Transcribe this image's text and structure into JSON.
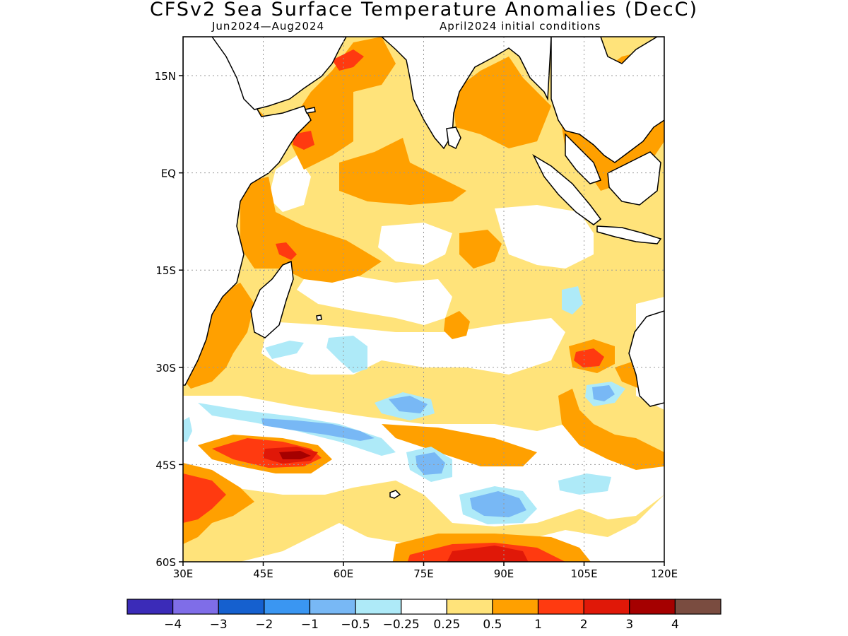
{
  "title": "CFSv2 Sea Surface Temperature Anomalies (DecC)",
  "subtitle_left": "Jun2024—Aug2024",
  "subtitle_right": "April2024 initial conditions",
  "map": {
    "lon_range": [
      30,
      120
    ],
    "lat_range": [
      -60,
      21
    ],
    "lat_ticks": [
      {
        "value": 15,
        "label": "15N"
      },
      {
        "value": 0,
        "label": "EQ"
      },
      {
        "value": -15,
        "label": "15S"
      },
      {
        "value": -30,
        "label": "30S"
      },
      {
        "value": -45,
        "label": "45S"
      },
      {
        "value": -60,
        "label": "60S"
      }
    ],
    "lon_ticks": [
      {
        "value": 30,
        "label": "30E"
      },
      {
        "value": 45,
        "label": "45E"
      },
      {
        "value": 60,
        "label": "60E"
      },
      {
        "value": 75,
        "label": "75E"
      },
      {
        "value": 90,
        "label": "90E"
      },
      {
        "value": 105,
        "label": "105E"
      },
      {
        "value": 120,
        "label": "120E"
      }
    ],
    "grid": true
  },
  "colorbar": {
    "colors": [
      "#3b2bb8",
      "#7f6de8",
      "#1560cf",
      "#3a96f2",
      "#78b8f5",
      "#aeeaf8",
      "#ffffff",
      "#ffe37a",
      "#ffa000",
      "#ff3a10",
      "#e01808",
      "#a50000",
      "#7a4c40"
    ],
    "labels": [
      "−4",
      "−3",
      "−2",
      "−1",
      "−0.5",
      "−0.25",
      "0.25",
      "0.5",
      "1",
      "2",
      "3",
      "4"
    ]
  }
}
